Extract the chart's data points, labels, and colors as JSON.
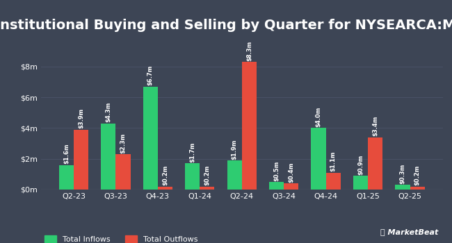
{
  "title": "Institutional Buying and Selling by Quarter for NYSEARCA:MMLG",
  "quarters": [
    "Q2-23",
    "Q3-23",
    "Q4-23",
    "Q1-24",
    "Q2-24",
    "Q3-24",
    "Q4-24",
    "Q1-25",
    "Q2-25"
  ],
  "inflows": [
    1.6,
    4.3,
    6.7,
    1.7,
    1.9,
    0.5,
    4.0,
    0.9,
    0.3
  ],
  "outflows": [
    3.9,
    2.3,
    0.2,
    0.2,
    8.3,
    0.4,
    1.1,
    3.4,
    0.2
  ],
  "inflow_labels": [
    "$1.6m",
    "$4.3m",
    "$6.7m",
    "$1.7m",
    "$1.9m",
    "$0.5m",
    "$4.0m",
    "$0.9m",
    "$0.3m"
  ],
  "outflow_labels": [
    "$3.9m",
    "$2.3m",
    "$0.2m",
    "$0.2m",
    "$8.3m",
    "$0.4m",
    "$1.1m",
    "$3.4m",
    "$0.2m"
  ],
  "inflow_color": "#2ecc71",
  "outflow_color": "#e74c3c",
  "background_color": "#3d4555",
  "text_color": "#ffffff",
  "grid_color": "#4a5266",
  "bar_width": 0.35,
  "ylim": [
    0,
    9.8
  ],
  "yticks": [
    0,
    2,
    4,
    6,
    8
  ],
  "ytick_labels": [
    "$0m",
    "$2m",
    "$4m",
    "$6m",
    "$8m"
  ],
  "title_fontsize": 14,
  "label_fontsize": 6.0,
  "tick_fontsize": 8.0,
  "legend_inflow": "Total Inflows",
  "legend_outflow": "Total Outflows"
}
